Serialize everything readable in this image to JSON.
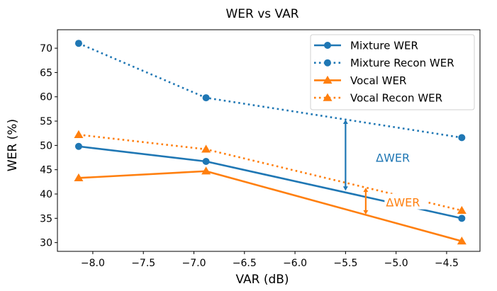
{
  "chart_data": {
    "type": "line",
    "title": "WER vs VAR",
    "xlabel": "VAR (dB)",
    "ylabel": "WER (%)",
    "xlim": [
      -8.35,
      -4.17
    ],
    "ylim": [
      28.2,
      73.8
    ],
    "xticks": [
      -8.0,
      -7.5,
      -7.0,
      -6.5,
      -6.0,
      -5.5,
      -5.0,
      -4.5
    ],
    "xtick_labels": [
      "−8.0",
      "−7.5",
      "−7.0",
      "−6.5",
      "−6.0",
      "−5.5",
      "−5.0",
      "−4.5"
    ],
    "yticks": [
      30,
      35,
      40,
      45,
      50,
      55,
      60,
      65,
      70
    ],
    "ytick_labels": [
      "30",
      "35",
      "40",
      "45",
      "50",
      "55",
      "60",
      "65",
      "70"
    ],
    "grid": false,
    "legend_position": "top-right",
    "x": [
      -8.14,
      -6.88,
      -4.35
    ],
    "series": [
      {
        "name": "Mixture WER",
        "values": [
          49.8,
          46.7,
          35.0
        ],
        "color": "#1f77b4",
        "linestyle": "solid",
        "marker": "circle"
      },
      {
        "name": "Mixture Recon WER",
        "values": [
          71.0,
          59.8,
          51.6
        ],
        "color": "#1f77b4",
        "linestyle": "dotted",
        "marker": "circle"
      },
      {
        "name": "Vocal WER",
        "values": [
          43.3,
          44.7,
          30.3
        ],
        "color": "#ff7f0e",
        "linestyle": "solid",
        "marker": "triangle"
      },
      {
        "name": "Vocal Recon WER",
        "values": [
          52.2,
          49.2,
          36.6
        ],
        "color": "#ff7f0e",
        "linestyle": "dotted",
        "marker": "triangle"
      }
    ],
    "annotations": [
      {
        "text": "ΔWER",
        "color": "#1f77b4",
        "arrow_x": -5.5,
        "arrow_y": [
          40.7,
          55.3
        ],
        "text_x": -5.2,
        "text_y": 47.5,
        "boxed": false
      },
      {
        "text": "ΔWER",
        "color": "#ff7f0e",
        "arrow_x": -5.3,
        "arrow_y": [
          35.8,
          41.3
        ],
        "text_x": -5.1,
        "text_y": 38.3,
        "boxed": true
      }
    ]
  }
}
